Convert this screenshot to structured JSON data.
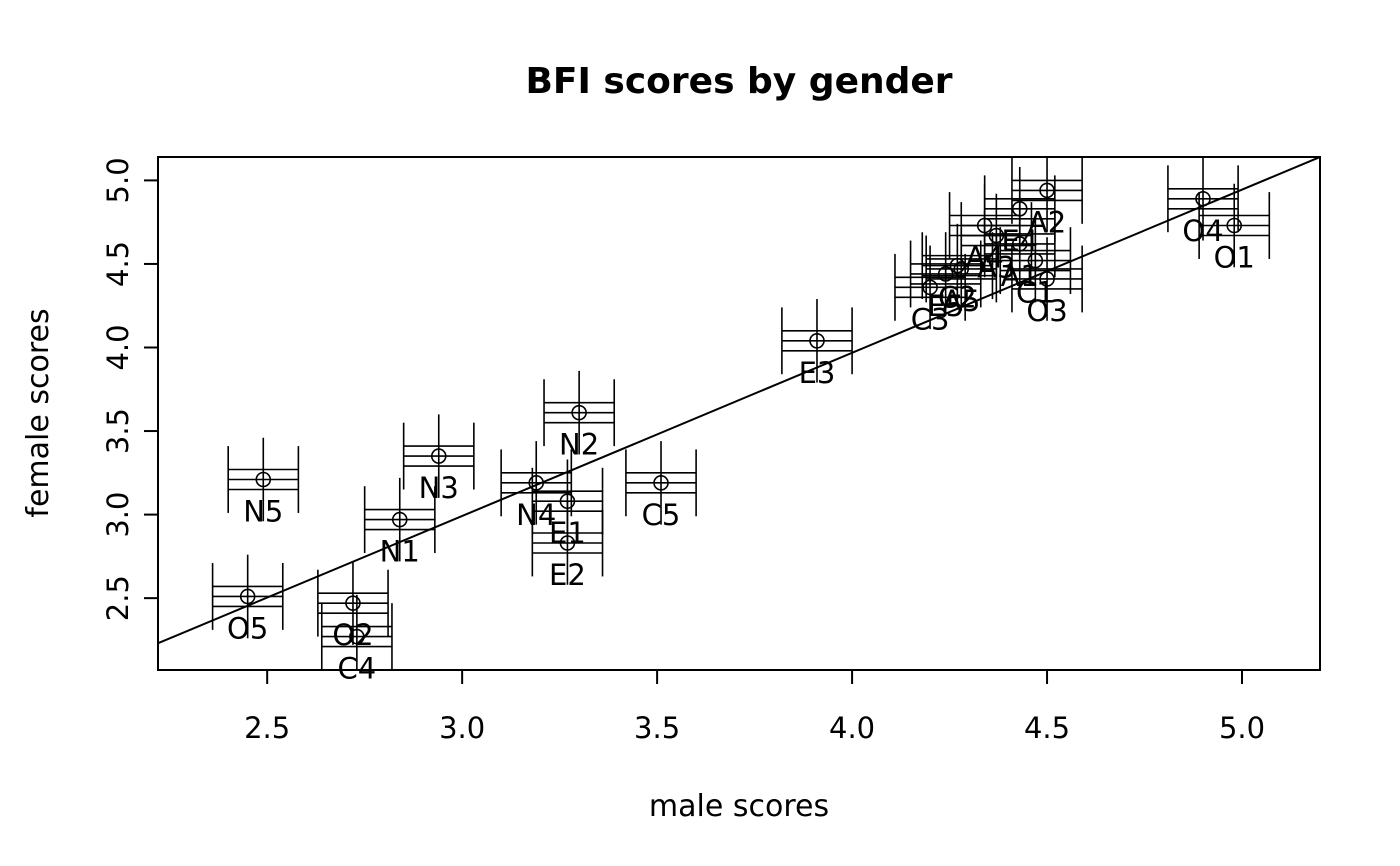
{
  "chart_data": {
    "type": "scatter",
    "title": "BFI scores by gender",
    "xlabel": "male scores",
    "ylabel": "female scores",
    "xlim": [
      2.22,
      5.2
    ],
    "ylim": [
      2.07,
      5.14
    ],
    "x_ticks": [
      "2.5",
      "3.0",
      "3.5",
      "4.0",
      "4.5",
      "5.0"
    ],
    "y_ticks": [
      "2.5",
      "3.0",
      "3.5",
      "4.0",
      "4.5",
      "5.0"
    ],
    "fit_line": {
      "x": [
        2.22,
        5.2
      ],
      "y": [
        2.23,
        5.14
      ]
    },
    "grid": false,
    "legend": "none",
    "points": [
      {
        "label": "A1",
        "x": 4.43,
        "y": 4.62
      },
      {
        "label": "A2",
        "x": 4.5,
        "y": 4.94
      },
      {
        "label": "A3",
        "x": 4.37,
        "y": 4.67
      },
      {
        "label": "A4",
        "x": 4.34,
        "y": 4.73
      },
      {
        "label": "A5",
        "x": 4.28,
        "y": 4.47
      },
      {
        "label": "C1",
        "x": 4.47,
        "y": 4.52
      },
      {
        "label": "C2",
        "x": 4.27,
        "y": 4.49
      },
      {
        "label": "C3",
        "x": 4.2,
        "y": 4.36
      },
      {
        "label": "C4",
        "x": 2.73,
        "y": 2.27
      },
      {
        "label": "C5",
        "x": 3.51,
        "y": 3.19
      },
      {
        "label": "E1",
        "x": 3.27,
        "y": 3.08
      },
      {
        "label": "E2",
        "x": 3.27,
        "y": 2.83
      },
      {
        "label": "E3",
        "x": 3.91,
        "y": 4.04
      },
      {
        "label": "E4",
        "x": 4.43,
        "y": 4.83
      },
      {
        "label": "E5",
        "x": 4.24,
        "y": 4.44
      },
      {
        "label": "N1",
        "x": 2.84,
        "y": 2.97
      },
      {
        "label": "N2",
        "x": 3.3,
        "y": 3.61
      },
      {
        "label": "N3",
        "x": 2.94,
        "y": 3.35
      },
      {
        "label": "N4",
        "x": 3.19,
        "y": 3.19
      },
      {
        "label": "N5",
        "x": 2.49,
        "y": 3.21
      },
      {
        "label": "O1",
        "x": 4.98,
        "y": 4.73
      },
      {
        "label": "O2",
        "x": 2.72,
        "y": 2.47
      },
      {
        "label": "O3",
        "x": 4.5,
        "y": 4.41
      },
      {
        "label": "O4",
        "x": 4.9,
        "y": 4.89
      },
      {
        "label": "O5",
        "x": 2.45,
        "y": 2.51
      }
    ]
  }
}
